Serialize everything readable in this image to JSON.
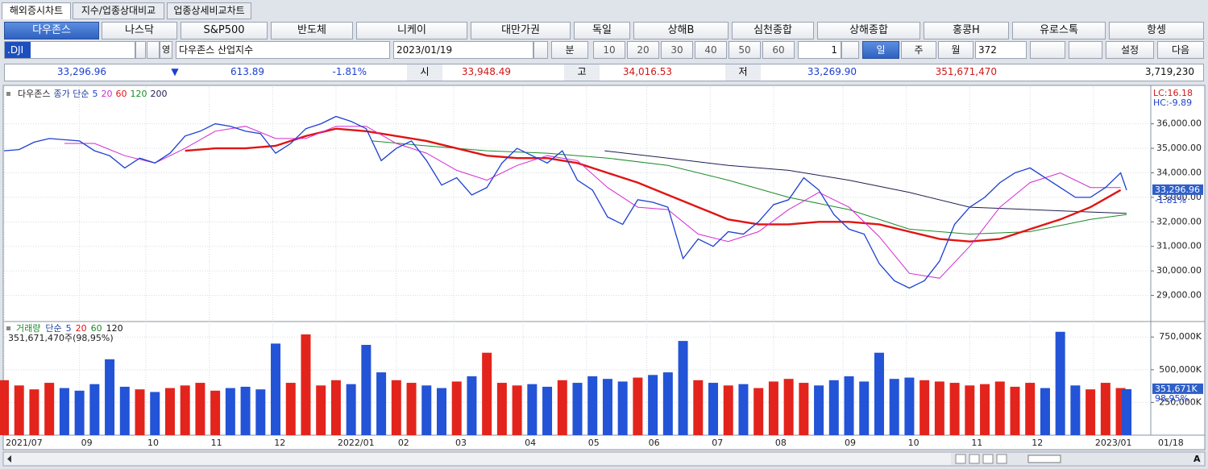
{
  "tabs": [
    "해외증시차트",
    "지수/업종상대비교",
    "업종상세비교차트"
  ],
  "indices": [
    "다우존스",
    "나스닥",
    "S&P500",
    "반도체",
    "니케이",
    "대만가권",
    "독일",
    "상해B",
    "심천종합",
    "상해종합",
    "홍콩H",
    "유로스톡",
    "항셍"
  ],
  "toolbar": {
    "symbol": ".DJI",
    "lang_button": "영",
    "name": "다우존스 산업지수",
    "date": "2023/01/19",
    "minute": "분",
    "minute_options": [
      "10",
      "20",
      "30",
      "40",
      "50",
      "60"
    ],
    "unit": "1",
    "periods": [
      "일",
      "주",
      "월"
    ],
    "count": "372",
    "settings": "설정",
    "next": "다음"
  },
  "quote": {
    "last": "33,296.96",
    "arrow": "▼",
    "change": "613.89",
    "change_pct": "-1.81%",
    "open_label": "시",
    "open": "33,948.49",
    "high_label": "고",
    "high": "34,016.53",
    "low_label": "저",
    "low": "33,269.90",
    "volume": "351,671,470",
    "amount": "3,719,230"
  },
  "zoom_text": "A",
  "chart_data": [
    {
      "type": "line",
      "title": "다우존스",
      "subtitle": "종가 단순",
      "xlim": [
        0,
        380
      ],
      "ylim": [
        28000,
        37500
      ],
      "xticks": [
        {
          "value": 0,
          "label": "2021/07"
        },
        {
          "value": 25,
          "label": "09"
        },
        {
          "value": 47,
          "label": "10"
        },
        {
          "value": 68,
          "label": "11"
        },
        {
          "value": 89,
          "label": "12"
        },
        {
          "value": 110,
          "label": "2022/01"
        },
        {
          "value": 130,
          "label": "02"
        },
        {
          "value": 149,
          "label": "03"
        },
        {
          "value": 172,
          "label": "04"
        },
        {
          "value": 193,
          "label": "05"
        },
        {
          "value": 213,
          "label": "06"
        },
        {
          "value": 234,
          "label": "07"
        },
        {
          "value": 255,
          "label": "08"
        },
        {
          "value": 278,
          "label": "09"
        },
        {
          "value": 299,
          "label": "10"
        },
        {
          "value": 320,
          "label": "11"
        },
        {
          "value": 340,
          "label": "12"
        },
        {
          "value": 361,
          "label": "2023/01"
        }
      ],
      "x_end_label": "01/18",
      "yticks": [
        {
          "value": 29000,
          "label": "29,000.00"
        },
        {
          "value": 30000,
          "label": "30,000.00"
        },
        {
          "value": 31000,
          "label": "31,000.00"
        },
        {
          "value": 32000,
          "label": "32,000.00"
        },
        {
          "value": 33000,
          "label": "33,000.00"
        },
        {
          "value": 34000,
          "label": "34,000.00"
        },
        {
          "value": 35000,
          "label": "35,000.00"
        },
        {
          "value": 36000,
          "label": "36,000.00"
        }
      ],
      "grid": true,
      "annotations": [
        "LC:16.18",
        "HC:-9.89"
      ],
      "last_tag": "33,296.96",
      "last_pct": "-1.81%",
      "series": [
        {
          "name": "5",
          "color": "#1d3fd0",
          "width": 1.3,
          "x": [
            0,
            5,
            10,
            15,
            20,
            25,
            30,
            35,
            40,
            45,
            50,
            55,
            60,
            65,
            70,
            75,
            80,
            85,
            90,
            95,
            100,
            105,
            110,
            115,
            120,
            125,
            130,
            135,
            140,
            145,
            150,
            155,
            160,
            165,
            170,
            175,
            180,
            185,
            190,
            195,
            200,
            205,
            210,
            215,
            220,
            225,
            230,
            235,
            240,
            245,
            250,
            255,
            260,
            265,
            270,
            275,
            280,
            285,
            290,
            295,
            300,
            305,
            310,
            315,
            320,
            325,
            330,
            335,
            340,
            345,
            350,
            355,
            360,
            365,
            370,
            372
          ],
          "values": [
            34900,
            34950,
            35250,
            35400,
            35350,
            35300,
            34900,
            34700,
            34200,
            34600,
            34400,
            34800,
            35500,
            35700,
            36000,
            35900,
            35700,
            35600,
            34800,
            35200,
            35800,
            36000,
            36300,
            36100,
            35800,
            34500,
            35000,
            35300,
            34500,
            33500,
            33800,
            33100,
            33400,
            34400,
            35000,
            34700,
            34400,
            34900,
            33700,
            33300,
            32200,
            31900,
            32900,
            32800,
            32600,
            30500,
            31300,
            31000,
            31600,
            31500,
            32000,
            32700,
            32900,
            33800,
            33300,
            32300,
            31700,
            31500,
            30300,
            29600,
            29300,
            29600,
            30400,
            31900,
            32600,
            33000,
            33600,
            34000,
            34200,
            33800,
            33400,
            33000,
            33000,
            33400,
            34000,
            33296.96
          ]
        },
        {
          "name": "20",
          "color": "#d22ad2",
          "width": 1,
          "x": [
            20,
            30,
            40,
            50,
            60,
            70,
            80,
            90,
            100,
            110,
            120,
            130,
            140,
            150,
            160,
            170,
            180,
            190,
            200,
            210,
            220,
            230,
            240,
            250,
            260,
            270,
            280,
            290,
            300,
            310,
            320,
            330,
            340,
            350,
            360,
            370
          ],
          "values": [
            35200,
            35200,
            34700,
            34400,
            35000,
            35700,
            35900,
            35400,
            35400,
            35900,
            35900,
            35200,
            34800,
            34100,
            33700,
            34300,
            34700,
            34500,
            33400,
            32600,
            32500,
            31500,
            31200,
            31600,
            32500,
            33200,
            32600,
            31400,
            29900,
            29700,
            31000,
            32600,
            33600,
            34000,
            33400,
            33400
          ]
        },
        {
          "name": "60",
          "color": "#e01414",
          "width": 2.4,
          "x": [
            60,
            70,
            80,
            90,
            100,
            110,
            120,
            130,
            140,
            150,
            160,
            170,
            180,
            190,
            200,
            210,
            220,
            230,
            240,
            250,
            260,
            270,
            280,
            290,
            300,
            310,
            320,
            330,
            340,
            350,
            360,
            370
          ],
          "values": [
            34900,
            35000,
            35000,
            35100,
            35500,
            35800,
            35700,
            35500,
            35300,
            35000,
            34700,
            34600,
            34600,
            34400,
            34000,
            33600,
            33100,
            32600,
            32100,
            31900,
            31900,
            32000,
            32000,
            31900,
            31600,
            31300,
            31200,
            31300,
            31700,
            32100,
            32600,
            33300
          ]
        },
        {
          "name": "120",
          "color": "#1c8a2a",
          "width": 1,
          "x": [
            122,
            140,
            160,
            180,
            200,
            220,
            240,
            260,
            280,
            300,
            320,
            340,
            360,
            372
          ],
          "values": [
            35300,
            35100,
            34900,
            34800,
            34600,
            34300,
            33700,
            33000,
            32500,
            31700,
            31500,
            31600,
            32100,
            32300
          ]
        },
        {
          "name": "200",
          "color": "#1e1e50",
          "width": 1,
          "x": [
            199,
            220,
            240,
            260,
            280,
            300,
            320,
            340,
            360,
            372
          ],
          "values": [
            34900,
            34600,
            34300,
            34100,
            33700,
            33200,
            32600,
            32500,
            32400,
            32350
          ]
        }
      ]
    },
    {
      "type": "bar",
      "title": "거래량",
      "subtitle": "단순",
      "ma_labels": [
        {
          "name": "5",
          "color": "#1d3fd0"
        },
        {
          "name": "20",
          "color": "#e01414"
        },
        {
          "name": "60",
          "color": "#1c8a2a"
        },
        {
          "name": "120",
          "color": "#111111"
        }
      ],
      "info": "351,671,470주(98,95%)",
      "last_tag": "351,671K",
      "last_pct": "98,95%",
      "xlim": [
        0,
        380
      ],
      "ylim": [
        0,
        850000
      ],
      "yticks": [
        {
          "value": 250000,
          "label": "250,000K"
        },
        {
          "value": 500000,
          "label": "500,000K"
        },
        {
          "value": 750000,
          "label": "750,000K"
        }
      ],
      "up_color": "#e3241c",
      "down_color": "#2353d6",
      "x": [
        0,
        5,
        10,
        15,
        20,
        25,
        30,
        35,
        40,
        45,
        50,
        55,
        60,
        65,
        70,
        75,
        80,
        85,
        90,
        95,
        100,
        105,
        110,
        115,
        120,
        125,
        130,
        135,
        140,
        145,
        150,
        155,
        160,
        165,
        170,
        175,
        180,
        185,
        190,
        195,
        200,
        205,
        210,
        215,
        220,
        225,
        230,
        235,
        240,
        245,
        250,
        255,
        260,
        265,
        270,
        275,
        280,
        285,
        290,
        295,
        300,
        305,
        310,
        315,
        320,
        325,
        330,
        335,
        340,
        345,
        350,
        355,
        360,
        365,
        370,
        372
      ],
      "values": [
        420000,
        380000,
        350000,
        400000,
        360000,
        340000,
        390000,
        580000,
        370000,
        350000,
        330000,
        360000,
        380000,
        400000,
        340000,
        360000,
        370000,
        350000,
        700000,
        400000,
        770000,
        380000,
        420000,
        390000,
        690000,
        480000,
        420000,
        400000,
        380000,
        360000,
        410000,
        450000,
        630000,
        400000,
        380000,
        390000,
        370000,
        420000,
        400000,
        450000,
        430000,
        410000,
        440000,
        460000,
        480000,
        720000,
        420000,
        400000,
        380000,
        390000,
        360000,
        410000,
        430000,
        400000,
        380000,
        420000,
        450000,
        410000,
        630000,
        430000,
        440000,
        420000,
        410000,
        400000,
        380000,
        390000,
        410000,
        370000,
        400000,
        360000,
        790000,
        380000,
        350000,
        400000,
        360000,
        351671
      ]
    }
  ]
}
